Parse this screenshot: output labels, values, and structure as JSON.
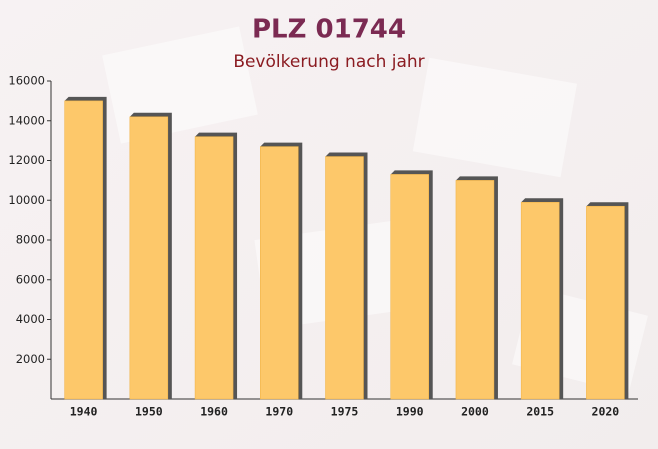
{
  "chart_data": {
    "type": "bar",
    "title": "PLZ 01744",
    "subtitle": "Bevölkerung nach jahr",
    "categories": [
      "1940",
      "1950",
      "1960",
      "1970",
      "1975",
      "1990",
      "2000",
      "2015",
      "2020"
    ],
    "values": [
      15000,
      14200,
      13200,
      12700,
      12200,
      11300,
      11000,
      9900,
      9700
    ],
    "color": "#fdc86a",
    "ylim": [
      0,
      16000
    ],
    "yticks": [
      2000,
      4000,
      6000,
      8000,
      10000,
      12000,
      14000,
      16000
    ]
  }
}
